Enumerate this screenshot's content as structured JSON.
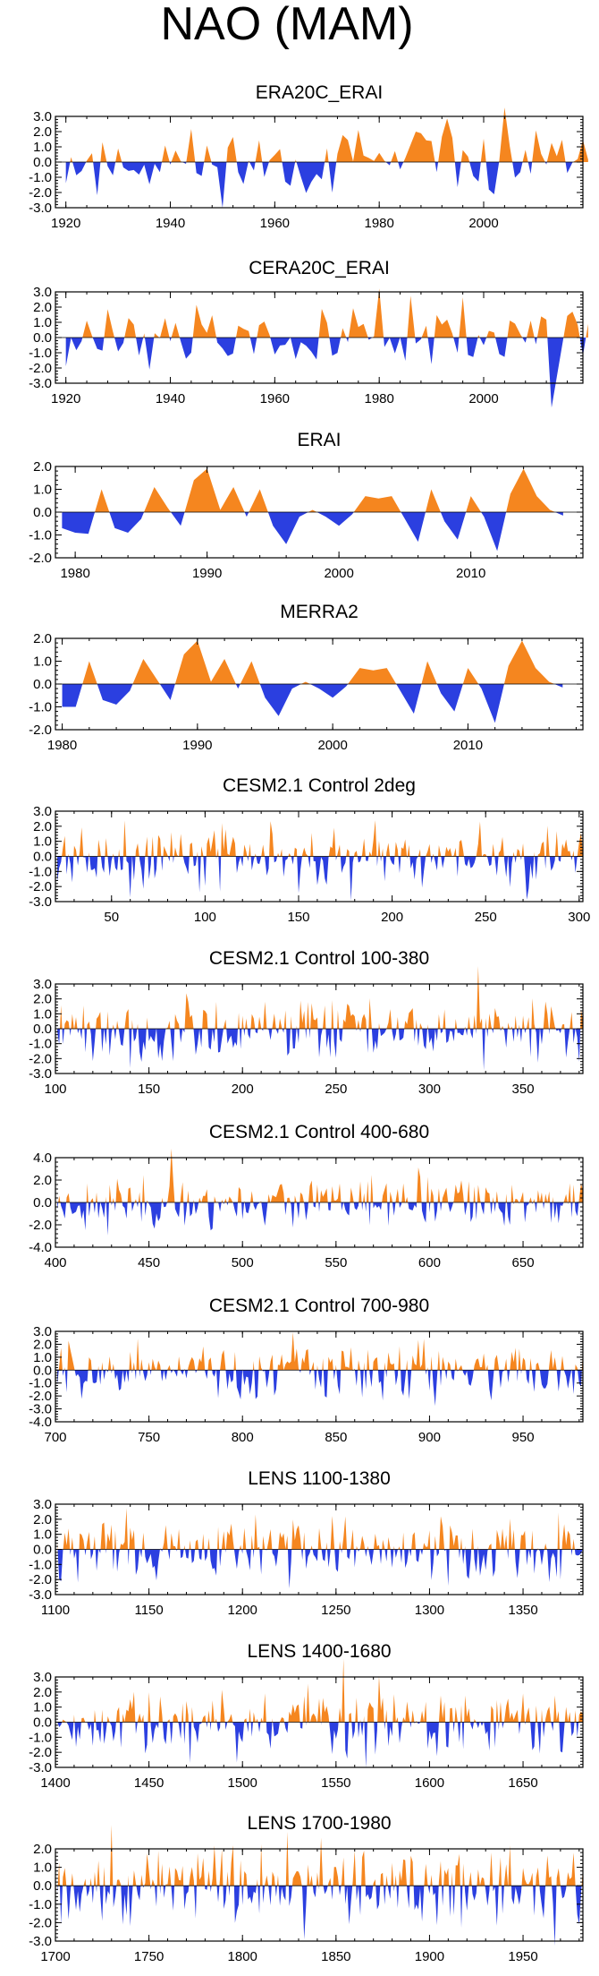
{
  "figure": {
    "title": "NAO (MAM)",
    "pos_color": "#f5861f",
    "neg_color": "#2b3fe0"
  },
  "chart_data": [
    {
      "type": "area",
      "title": "ERA20C_ERAI",
      "xlim": [
        1918,
        2019
      ],
      "ylim": [
        -3.0,
        3.0
      ],
      "yticks": [
        "3.0",
        "2.0",
        "1.0",
        "0.0",
        "-1.0",
        "-2.0",
        "-3.0"
      ],
      "yticks_values": [
        3,
        2,
        1,
        0,
        -1,
        -2,
        -3
      ],
      "xticks": [
        "1920",
        "1940",
        "1960",
        "1980",
        "2000"
      ],
      "xticks_values": [
        1920,
        1940,
        1960,
        1980,
        2000
      ],
      "gen": {
        "mode": "annual",
        "n": 101,
        "seed": 11,
        "amp": 1.1
      }
    },
    {
      "type": "area",
      "title": "CERA20C_ERAI",
      "xlim": [
        1918,
        2019
      ],
      "ylim": [
        -3.0,
        3.0
      ],
      "yticks": [
        "3.0",
        "2.0",
        "1.0",
        "0.0",
        "-1.0",
        "-2.0",
        "-3.0"
      ],
      "yticks_values": [
        3,
        2,
        1,
        0,
        -1,
        -2,
        -3
      ],
      "xticks": [
        "1920",
        "1940",
        "1960",
        "1980",
        "2000"
      ],
      "xticks_values": [
        1920,
        1940,
        1960,
        1980,
        2000
      ],
      "gen": {
        "mode": "annual",
        "n": 101,
        "seed": 12,
        "amp": 1.1
      }
    },
    {
      "type": "area",
      "title": "ERAI",
      "xlim": [
        1978.5,
        2018.5
      ],
      "ylim": [
        -2.0,
        2.0
      ],
      "yticks": [
        "2.0",
        "1.0",
        "0.0",
        "-1.0",
        "-2.0"
      ],
      "yticks_values": [
        2,
        1,
        0,
        -1,
        -2
      ],
      "xticks": [
        "1980",
        "1990",
        "2000",
        "2010"
      ],
      "xticks_values": [
        1980,
        1990,
        2000,
        2010
      ],
      "x": [
        1979,
        1980,
        1981,
        1982,
        1983,
        1984,
        1985,
        1986,
        1987,
        1988,
        1989,
        1990,
        1991,
        1992,
        1993,
        1994,
        1995,
        1996,
        1997,
        1998,
        1999,
        2000,
        2001,
        2002,
        2003,
        2004,
        2005,
        2006,
        2007,
        2008,
        2009,
        2010,
        2011,
        2012,
        2013,
        2014,
        2015,
        2016,
        2017
      ],
      "values": [
        -0.7,
        -0.9,
        -0.95,
        1.0,
        -0.7,
        -0.9,
        -0.3,
        1.1,
        0.2,
        -0.6,
        1.4,
        1.9,
        0.1,
        1.1,
        -0.2,
        1.0,
        -0.6,
        -1.4,
        -0.2,
        0.1,
        -0.2,
        -0.6,
        -0.1,
        0.7,
        0.6,
        0.7,
        -0.3,
        -1.3,
        1.0,
        -0.4,
        -1.2,
        0.7,
        -0.2,
        -1.7,
        0.8,
        1.9,
        0.7,
        0.1,
        -0.15
      ]
    },
    {
      "type": "area",
      "title": "MERRA2",
      "xlim": [
        1979.5,
        2018.5
      ],
      "ylim": [
        -2.0,
        2.0
      ],
      "yticks": [
        "2.0",
        "1.0",
        "0.0",
        "-1.0",
        "-2.0"
      ],
      "yticks_values": [
        2,
        1,
        0,
        -1,
        -2
      ],
      "xticks": [
        "1980",
        "1990",
        "2000",
        "2010"
      ],
      "xticks_values": [
        1980,
        1990,
        2000,
        2010
      ],
      "x": [
        1980,
        1981,
        1982,
        1983,
        1984,
        1985,
        1986,
        1987,
        1988,
        1989,
        1990,
        1991,
        1992,
        1993,
        1994,
        1995,
        1996,
        1997,
        1998,
        1999,
        2000,
        2001,
        2002,
        2003,
        2004,
        2005,
        2006,
        2007,
        2008,
        2009,
        2010,
        2011,
        2012,
        2013,
        2014,
        2015,
        2016,
        2017
      ],
      "values": [
        -1.0,
        -1.0,
        1.0,
        -0.7,
        -0.9,
        -0.3,
        1.1,
        0.2,
        -0.7,
        1.3,
        1.9,
        0.1,
        1.1,
        -0.2,
        1.0,
        -0.6,
        -1.4,
        -0.2,
        0.1,
        -0.2,
        -0.6,
        -0.1,
        0.7,
        0.6,
        0.7,
        -0.3,
        -1.3,
        1.0,
        -0.4,
        -1.2,
        0.7,
        -0.2,
        -1.7,
        0.8,
        1.9,
        0.7,
        0.1,
        -0.15
      ]
    },
    {
      "type": "area",
      "title": "CESM2.1 Control 2deg",
      "xlim": [
        20,
        302
      ],
      "ylim": [
        -3.0,
        3.0
      ],
      "yticks": [
        "3.0",
        "2.0",
        "1.0",
        "0.0",
        "-1.0",
        "-2.0",
        "-3.0"
      ],
      "yticks_values": [
        3,
        2,
        1,
        0,
        -1,
        -2,
        -3
      ],
      "xticks": [
        "50",
        "100",
        "150",
        "200",
        "250",
        "300"
      ],
      "xticks_values": [
        50,
        100,
        150,
        200,
        250,
        300
      ],
      "gen": {
        "mode": "dense",
        "n": 282,
        "seed": 21,
        "amp": 0.95
      }
    },
    {
      "type": "area",
      "title": "CESM2.1 Control 100-380",
      "xlim": [
        100,
        382
      ],
      "ylim": [
        -3.0,
        3.0
      ],
      "yticks": [
        "3.0",
        "2.0",
        "1.0",
        "0.0",
        "-1.0",
        "-2.0",
        "-3.0"
      ],
      "yticks_values": [
        3,
        2,
        1,
        0,
        -1,
        -2,
        -3
      ],
      "xticks": [
        "100",
        "150",
        "200",
        "250",
        "300",
        "350"
      ],
      "xticks_values": [
        100,
        150,
        200,
        250,
        300,
        350
      ],
      "gen": {
        "mode": "dense",
        "n": 282,
        "seed": 22,
        "amp": 0.95
      }
    },
    {
      "type": "area",
      "title": "CESM2.1 Control 400-680",
      "xlim": [
        400,
        682
      ],
      "ylim": [
        -4.0,
        4.0
      ],
      "yticks": [
        "4.0",
        "2.0",
        "0.0",
        "-2.0",
        "-4.0"
      ],
      "yticks_values": [
        4,
        2,
        0,
        -2,
        -4
      ],
      "xticks": [
        "400",
        "450",
        "500",
        "550",
        "600",
        "650"
      ],
      "xticks_values": [
        400,
        450,
        500,
        550,
        600,
        650
      ],
      "gen": {
        "mode": "dense",
        "n": 282,
        "seed": 23,
        "amp": 1.0
      }
    },
    {
      "type": "area",
      "title": "CESM2.1 Control 700-980",
      "xlim": [
        700,
        982
      ],
      "ylim": [
        -4.0,
        3.0
      ],
      "yticks": [
        "3.0",
        "2.0",
        "1.0",
        "0.0",
        "-1.0",
        "-2.0",
        "-3.0",
        "-4.0"
      ],
      "yticks_values": [
        3,
        2,
        1,
        0,
        -1,
        -2,
        -3,
        -4
      ],
      "xticks": [
        "700",
        "750",
        "800",
        "850",
        "900",
        "950"
      ],
      "xticks_values": [
        700,
        750,
        800,
        850,
        900,
        950
      ],
      "gen": {
        "mode": "dense",
        "n": 282,
        "seed": 24,
        "amp": 1.0
      }
    },
    {
      "type": "area",
      "title": "LENS 1100-1380",
      "xlim": [
        1100,
        1382
      ],
      "ylim": [
        -3.0,
        3.0
      ],
      "yticks": [
        "3.0",
        "2.0",
        "1.0",
        "0.0",
        "-1.0",
        "-2.0",
        "-3.0"
      ],
      "yticks_values": [
        3,
        2,
        1,
        0,
        -1,
        -2,
        -3
      ],
      "xticks": [
        "1100",
        "1150",
        "1200",
        "1250",
        "1300",
        "1350"
      ],
      "xticks_values": [
        1100,
        1150,
        1200,
        1250,
        1300,
        1350
      ],
      "gen": {
        "mode": "dense",
        "n": 282,
        "seed": 25,
        "amp": 0.95
      }
    },
    {
      "type": "area",
      "title": "LENS 1400-1680",
      "xlim": [
        1400,
        1682
      ],
      "ylim": [
        -3.0,
        3.0
      ],
      "yticks": [
        "3.0",
        "2.0",
        "1.0",
        "0.0",
        "-1.0",
        "-2.0",
        "-3.0"
      ],
      "yticks_values": [
        3,
        2,
        1,
        0,
        -1,
        -2,
        -3
      ],
      "xticks": [
        "1400",
        "1450",
        "1500",
        "1550",
        "1600",
        "1650"
      ],
      "xticks_values": [
        1400,
        1450,
        1500,
        1550,
        1600,
        1650
      ],
      "gen": {
        "mode": "dense",
        "n": 282,
        "seed": 26,
        "amp": 0.95
      }
    },
    {
      "type": "area",
      "title": "LENS 1700-1980",
      "xlim": [
        1700,
        1982
      ],
      "ylim": [
        -3.0,
        2.0
      ],
      "yticks": [
        "2.0",
        "1.0",
        "0.0",
        "-1.0",
        "-2.0",
        "-3.0"
      ],
      "yticks_values": [
        2,
        1,
        0,
        -1,
        -2,
        -3
      ],
      "xticks": [
        "1700",
        "1750",
        "1800",
        "1850",
        "1900",
        "1950"
      ],
      "xticks_values": [
        1700,
        1750,
        1800,
        1850,
        1900,
        1950
      ],
      "gen": {
        "mode": "dense",
        "n": 282,
        "seed": 27,
        "amp": 0.95
      }
    }
  ]
}
